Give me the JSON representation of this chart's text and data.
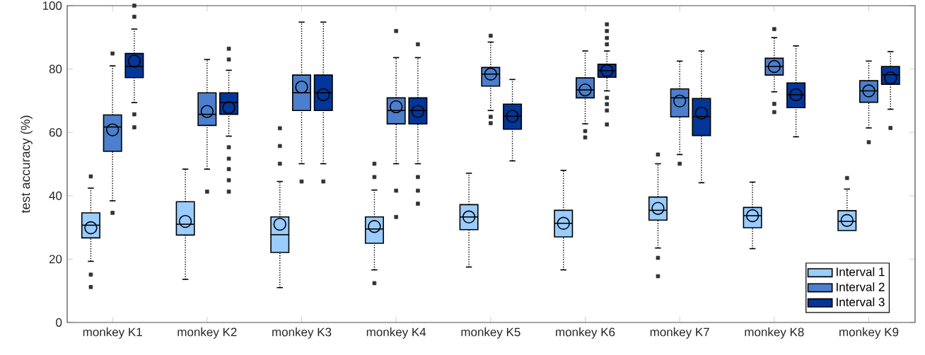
{
  "chart_data": {
    "type": "box",
    "ylabel": "test accuracy (%)",
    "ylim": [
      0,
      100
    ],
    "yticks": [
      0,
      20,
      40,
      60,
      80,
      100
    ],
    "legend": "bottom right",
    "categories": [
      "monkey K1",
      "monkey K2",
      "monkey K3",
      "monkey K4",
      "monkey K5",
      "monkey K6",
      "monkey K7",
      "monkey K8",
      "monkey K9"
    ],
    "series": [
      {
        "name": "Interval 1",
        "color": "#99ccff",
        "boxes": [
          {
            "low": 19.3,
            "q1": 26.7,
            "median": 30.7,
            "q3": 34.6,
            "high": 42.4,
            "mean": 29.9,
            "outliers": [
              46.1,
              15.1,
              11.2
            ]
          },
          {
            "low": 13.6,
            "q1": 27.6,
            "median": 31.0,
            "q3": 38.1,
            "high": 48.4,
            "mean": 31.9
          },
          {
            "low": 11.0,
            "q1": 22.1,
            "median": 27.7,
            "q3": 33.3,
            "high": 44.5,
            "mean": 31.0,
            "outliers": [
              61.3,
              55.7,
              50.1
            ]
          },
          {
            "low": 16.6,
            "q1": 25.0,
            "median": 29.5,
            "q3": 33.3,
            "high": 41.8,
            "mean": 30.3,
            "outliers": [
              50.1,
              45.9,
              12.4
            ]
          },
          {
            "low": 17.5,
            "q1": 29.3,
            "median": 33.3,
            "q3": 37.2,
            "high": 47.1,
            "mean": 33.3
          },
          {
            "low": 16.6,
            "q1": 27.0,
            "median": 31.3,
            "q3": 35.4,
            "high": 48.0,
            "mean": 31.3
          },
          {
            "low": 23.5,
            "q1": 32.3,
            "median": 35.4,
            "q3": 39.6,
            "high": 50.1,
            "mean": 36.0,
            "outliers": [
              53.0,
              20.4,
              14.6
            ]
          },
          {
            "low": 23.3,
            "q1": 29.9,
            "median": 33.7,
            "q3": 36.3,
            "high": 44.3,
            "mean": 33.7
          },
          {
            "low": null,
            "q1": 29.0,
            "median": 31.9,
            "q3": 35.3,
            "high": 42.1,
            "mean": 32.2,
            "outliers": [
              45.6
            ]
          }
        ]
      },
      {
        "name": "Interval 2",
        "color": "#4c7fcc",
        "boxes": [
          {
            "low": 38.4,
            "q1": 54.0,
            "median": 61.7,
            "q3": 65.5,
            "high": 81.0,
            "mean": 60.8,
            "outliers": [
              84.9,
              34.6
            ]
          },
          {
            "low": 48.4,
            "q1": 62.2,
            "median": 65.7,
            "q3": 72.5,
            "high": 83.0,
            "mean": 66.6,
            "outliers": [
              41.3
            ]
          },
          {
            "low": 50.1,
            "q1": 66.9,
            "median": 72.5,
            "q3": 78.1,
            "high": 94.8,
            "mean": 74.3,
            "outliers": [
              44.5
            ]
          },
          {
            "low": 50.1,
            "q1": 62.7,
            "median": 66.9,
            "q3": 70.9,
            "high": 83.6,
            "mean": 68.1,
            "outliers": [
              92.0,
              41.6,
              33.3
            ]
          },
          {
            "low": 66.9,
            "q1": 74.6,
            "median": 78.4,
            "q3": 80.5,
            "high": 88.5,
            "mean": 78.4,
            "outliers": [
              90.5,
              64.9,
              62.9
            ]
          },
          {
            "low": 62.7,
            "q1": 70.9,
            "median": 73.4,
            "q3": 77.2,
            "high": 85.7,
            "mean": 73.4,
            "outliers": [
              60.4,
              58.4
            ]
          },
          {
            "low": 53.0,
            "q1": 64.9,
            "median": 70.9,
            "q3": 73.7,
            "high": 82.5,
            "mean": 69.9,
            "outliers": [
              50.1
            ]
          },
          {
            "low": 72.8,
            "q1": 78.1,
            "median": 80.8,
            "q3": 83.4,
            "high": 89.9,
            "mean": 80.8,
            "outliers": [
              92.6,
              69.0,
              66.4
            ]
          },
          {
            "low": 61.4,
            "q1": 69.5,
            "median": 73.1,
            "q3": 76.3,
            "high": 82.5,
            "mean": 73.1,
            "outliers": [
              56.9
            ]
          }
        ]
      },
      {
        "name": "Interval 3",
        "color": "#023699",
        "boxes": [
          {
            "low": 69.4,
            "q1": 77.3,
            "median": 80.8,
            "q3": 84.9,
            "high": 92.6,
            "mean": 82.5,
            "outliers": [
              100,
              96.5,
              65.7,
              61.6
            ]
          },
          {
            "low": 58.8,
            "q1": 65.7,
            "median": 69.4,
            "q3": 72.5,
            "high": 79.6,
            "mean": 67.8,
            "outliers": [
              86.4,
              83.0,
              55.3,
              51.7,
              48.4,
              44.9,
              41.3
            ]
          },
          {
            "low": 50.1,
            "q1": 66.9,
            "median": 72.5,
            "q3": 78.1,
            "high": 94.8,
            "mean": 71.9,
            "outliers": [
              44.5
            ]
          },
          {
            "low": 50.1,
            "q1": 62.7,
            "median": 66.9,
            "q3": 70.9,
            "high": 83.6,
            "mean": 66.6,
            "outliers": [
              87.8,
              45.9,
              41.6,
              37.5
            ]
          },
          {
            "low": 51.0,
            "q1": 61.0,
            "median": 65.1,
            "q3": 68.9,
            "high": 76.7,
            "mean": 65.1
          },
          {
            "low": 73.1,
            "q1": 77.4,
            "median": 79.5,
            "q3": 81.5,
            "high": 85.7,
            "mean": 79.5,
            "outliers": [
              94.1,
              92.0,
              89.8,
              87.8,
              70.9,
              68.9,
              66.9,
              62.5
            ]
          },
          {
            "low": 44.1,
            "q1": 59.0,
            "median": 65.0,
            "q3": 70.7,
            "high": 85.7,
            "mean": 66.1
          },
          {
            "low": 58.6,
            "q1": 67.8,
            "median": 71.9,
            "q3": 75.6,
            "high": 87.3,
            "mean": 71.9
          },
          {
            "low": 67.3,
            "q1": 75.2,
            "median": 78.2,
            "q3": 80.8,
            "high": 85.5,
            "mean": 77.2,
            "outliers": [
              61.4
            ]
          }
        ]
      }
    ]
  }
}
